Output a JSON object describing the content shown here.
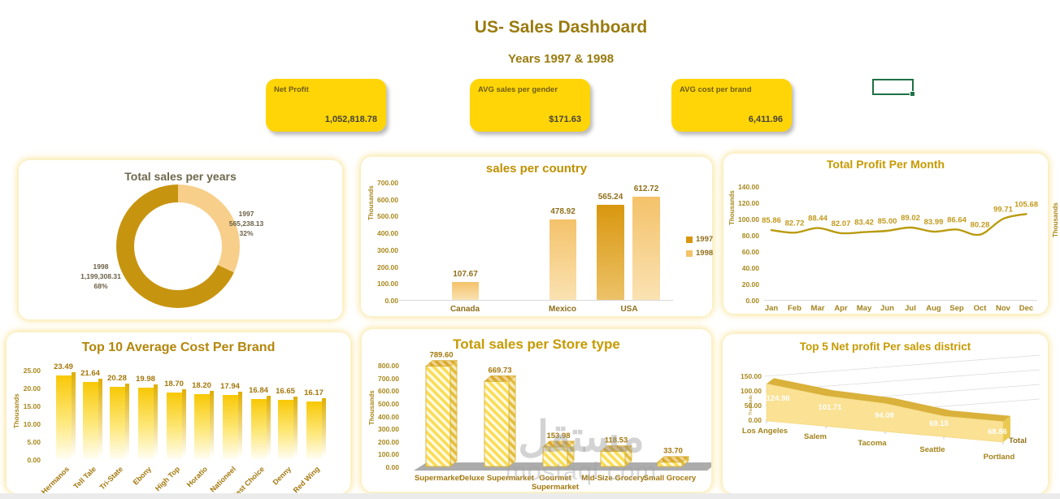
{
  "header": {
    "title": "US- Sales Dashboard",
    "subtitle": "Years 1997 & 1998"
  },
  "kpis": [
    {
      "label": "Net Profit",
      "value": "1,052,818.78"
    },
    {
      "label": "AVG sales per gender",
      "value": "$171.63"
    },
    {
      "label": "AVG cost per brand",
      "value": "6,411.96"
    }
  ],
  "colors": {
    "kpi_yellow": "#FFD507",
    "excel_selection_green": "#1E7145",
    "title_gold": "#9A7B0E",
    "donut_dark": "#C79410",
    "donut_light": "#F7CF8B"
  },
  "watermark": {
    "arabic": "مستقل",
    "latin": "mostaql.com"
  },
  "partial_chart": {
    "ylabel": "Thousands"
  },
  "chart_data": [
    {
      "id": "sales-per-years",
      "type": "pie",
      "title": "Total sales per years",
      "slices": [
        {
          "label": "1997",
          "value": 565238.13,
          "display": "565,238.13",
          "percent": "32%",
          "pct": 32,
          "color": "#F7CF8B"
        },
        {
          "label": "1998",
          "value": 1199308.31,
          "display": "1,199,308.31",
          "percent": "68%",
          "pct": 68,
          "color": "#C79410"
        }
      ]
    },
    {
      "id": "sales-per-country",
      "type": "bar",
      "title": "sales per country",
      "ylabel": "Thousands",
      "ymax": 700,
      "yticks": [
        "700.00",
        "600.00",
        "500.00",
        "400.00",
        "300.00",
        "200.00",
        "100.00",
        "0.00"
      ],
      "categories": [
        "Canada",
        "Mexico",
        "USA"
      ],
      "series": [
        {
          "name": "1997",
          "color_top": "#D9970F",
          "color_bottom": "#ECC268",
          "values": [
            null,
            null,
            565.24
          ],
          "labels": [
            "",
            "",
            "565.24"
          ]
        },
        {
          "name": "1998",
          "color_top": "#F4C26A",
          "color_bottom": "#FAE2B2",
          "values": [
            107.67,
            478.92,
            612.72
          ],
          "labels": [
            "107.67",
            "478.92",
            "612.72"
          ]
        }
      ],
      "legend": [
        "1997",
        "1998"
      ]
    },
    {
      "id": "profit-per-month",
      "type": "line",
      "title": "Total Profit Per Month",
      "ylabel": "Thousands",
      "ymax": 140,
      "yticks": [
        "140.00",
        "120.00",
        "100.00",
        "80.00",
        "60.00",
        "40.00",
        "20.00",
        "0.00"
      ],
      "categories": [
        "Jan",
        "Feb",
        "Mar",
        "Apr",
        "May",
        "Jun",
        "Jul",
        "Aug",
        "Sep",
        "Oct",
        "Nov",
        "Dec"
      ],
      "values": [
        85.86,
        82.72,
        88.44,
        82.07,
        83.42,
        85.0,
        89.02,
        83.99,
        86.64,
        80.28,
        99.71,
        105.68
      ],
      "labels": [
        "85.86",
        "82.72",
        "88.44",
        "82.07",
        "83.42",
        "85.00",
        "89.02",
        "83.99",
        "86.64",
        "80.28",
        "99.71",
        "105.68"
      ],
      "line_color": "#B99B0F"
    },
    {
      "id": "cost-per-brand",
      "type": "bar",
      "title": "Top 10 Average Cost Per Brand",
      "ylabel": "Thousands",
      "ymax": 25,
      "yticks": [
        "25.00",
        "20.00",
        "15.00",
        "10.00",
        "5.00",
        "0.00"
      ],
      "categories": [
        "Hermanos",
        "Tell Tale",
        "Tri-State",
        "Ebony",
        "High Top",
        "Horatio",
        "Nationeel",
        "Best Choice",
        "Denny",
        "Red Wing"
      ],
      "values": [
        23.49,
        21.64,
        20.28,
        19.98,
        18.7,
        18.2,
        17.94,
        16.84,
        16.65,
        16.17
      ],
      "labels": [
        "23.49",
        "21.64",
        "20.28",
        "19.98",
        "18.70",
        "18.20",
        "17.94",
        "16.84",
        "16.65",
        "16.17"
      ]
    },
    {
      "id": "sales-per-store-type",
      "type": "bar",
      "title": "Total sales per Store type",
      "ylabel": "Thousands",
      "ymax": 800,
      "yticks": [
        "800.00",
        "700.00",
        "600.00",
        "500.00",
        "400.00",
        "300.00",
        "200.00",
        "100.00",
        "0.00"
      ],
      "categories": [
        "Supermarket",
        "Deluxe Supermarket",
        "Gourmet Supermarket",
        "Mid-Size Grocery",
        "Small Grocery"
      ],
      "values": [
        789.6,
        669.73,
        153.98,
        118.53,
        33.7
      ],
      "labels": [
        "789.60",
        "669.73",
        "153.98",
        "118.53",
        "33.70"
      ]
    },
    {
      "id": "profit-per-district",
      "type": "area",
      "title": "Top 5 Net profit Per sales district",
      "ylabel": "Thousands",
      "yticks": [
        "150.00",
        "100.00",
        "50.00",
        "0.00"
      ],
      "series_label": "Total",
      "categories": [
        "Los Angeles",
        "Salem",
        "Tacoma",
        "Seattle",
        "Portland"
      ],
      "values": [
        124.98,
        101.71,
        94.09,
        69.15,
        68.86
      ],
      "labels": [
        "124.98",
        "101.71",
        "94.09",
        "69.15",
        "68.86"
      ]
    }
  ]
}
